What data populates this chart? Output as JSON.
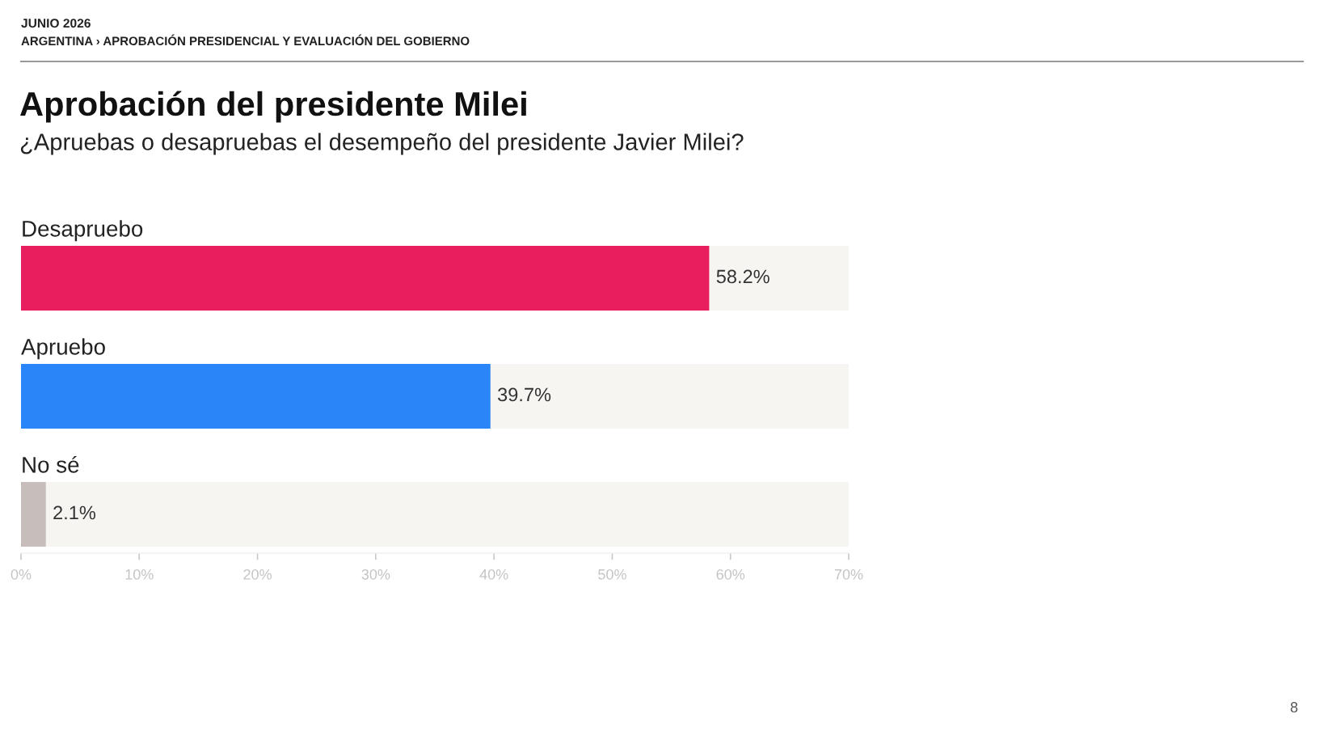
{
  "chart_data": {
    "type": "bar",
    "orientation": "horizontal",
    "title": "Aprobación del presidente Milei",
    "subtitle": "¿Apruebas o desapruebas el desempeño del presidente Javier Milei?",
    "annotations": [
      "JUNIO 2026",
      "ARGENTINA › APROBACIÓN PRESIDENCIAL Y EVALUACIÓN DEL GOBIERNO",
      "8"
    ],
    "categories": [
      "Desapruebo",
      "Apruebo",
      "No sé"
    ],
    "values": [
      58.2,
      39.7,
      2.1
    ],
    "colors": [
      "#e91e5f",
      "#2a85f8",
      "#c7bebb"
    ],
    "value_labels": [
      "58.2%",
      "39.7%",
      "2.1%"
    ],
    "xlim": [
      0,
      70
    ],
    "xticks": [
      {
        "value": 0,
        "label": "0%"
      },
      {
        "value": 10,
        "label": "10%"
      },
      {
        "value": 20,
        "label": "20%"
      },
      {
        "value": 30,
        "label": "30%"
      },
      {
        "value": 40,
        "label": "40%"
      },
      {
        "value": 50,
        "label": "50%"
      },
      {
        "value": 60,
        "label": "60%"
      },
      {
        "value": 70,
        "label": "70%"
      }
    ],
    "grid": false,
    "legend": false
  }
}
